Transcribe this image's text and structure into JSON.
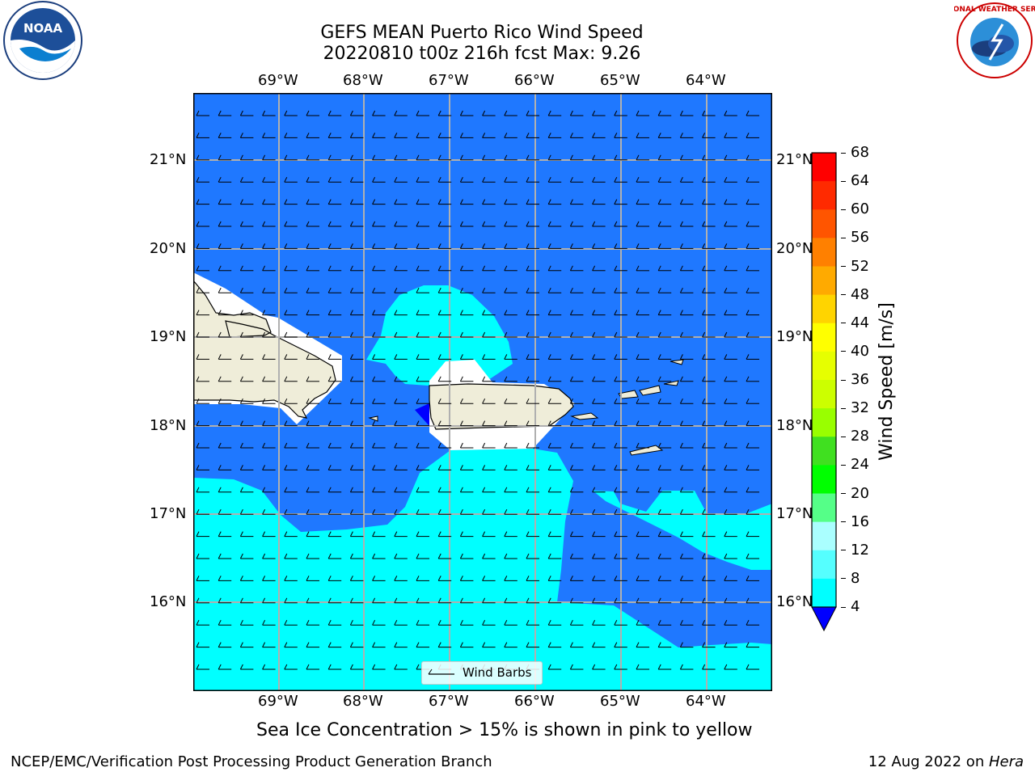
{
  "header": {
    "title_line1": "GEFS MEAN Puerto Rico Wind Speed",
    "title_line2": "20220810 t00z 216h fcst   Max: 9.26"
  },
  "logos": {
    "noaa_text": "NOAA",
    "nws_text": "NATIONAL WEATHER SERVICE"
  },
  "map": {
    "lon_ticks": [
      "69°W",
      "68°W",
      "67°W",
      "66°W",
      "65°W",
      "64°W"
    ],
    "lat_ticks": [
      "21°N",
      "20°N",
      "19°N",
      "18°N",
      "17°N",
      "16°N"
    ],
    "legend_label": "Wind Barbs",
    "ocean_color": "#1f78ff",
    "shallow_color": "#00ffff",
    "land_color": "#efedd9"
  },
  "colorbar": {
    "label": "Wind Speed [m/s]",
    "ticks": [
      "68",
      "64",
      "60",
      "56",
      "52",
      "48",
      "44",
      "40",
      "36",
      "32",
      "28",
      "24",
      "20",
      "16",
      "12",
      "8",
      "4"
    ],
    "colors": [
      "#ff0000",
      "#ff2a00",
      "#ff5500",
      "#ff8000",
      "#ffaa00",
      "#ffd400",
      "#ffff00",
      "#e6ff00",
      "#ccff00",
      "#99ff00",
      "#40e020",
      "#00ff00",
      "#55ff88",
      "#aaffff",
      "#55ffff",
      "#00ffff",
      "#1f78ff"
    ],
    "under_color": "#0000ff"
  },
  "notes": {
    "sea_ice": "Sea Ice Concentration > 15% is shown in pink to yellow"
  },
  "footer": {
    "branch": "NCEP/EMC/Verification Post Processing Product Generation Branch",
    "date": "12 Aug 2022 on ",
    "machine": "Hera"
  }
}
